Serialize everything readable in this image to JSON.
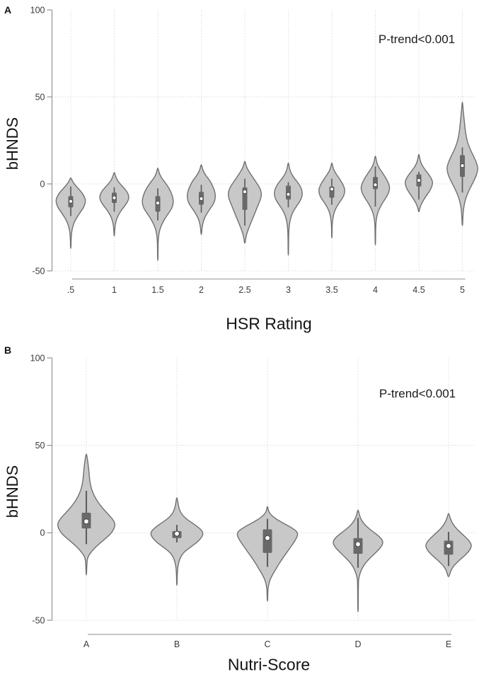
{
  "figure": {
    "background": "#ffffff",
    "panels": [
      {
        "letter": "A"
      },
      {
        "letter": "B"
      }
    ]
  },
  "colors": {
    "violin_fill": "#c8c8c8",
    "violin_stroke": "#707070",
    "box_fill": "#696969",
    "whisker": "#5f5f5f",
    "median_fill": "#ffffff",
    "median_stroke": "#4d4d4d",
    "axis_line": "#9a9a9a",
    "x_axis_line": "#b3b3b3",
    "gridline": "#d9d9d9",
    "tick_text": "#3a3a3a",
    "title_text": "#141414"
  },
  "chart_data": [
    {
      "type": "violin",
      "panel": "A",
      "xlabel": "HSR Rating",
      "ylabel": "bHNDS",
      "annotation": "P-trend<0.001",
      "grid": "dotted",
      "legend": "none",
      "yticks": [
        100,
        50,
        0,
        -50
      ],
      "ylim": [
        -50,
        100
      ],
      "categories": [
        ".5",
        "1",
        "1.5",
        "2",
        "2.5",
        "3",
        "3.5",
        "4",
        "4.5",
        "5"
      ],
      "series": [
        {
          "category": ".5",
          "median": -10,
          "q1": -13.5,
          "q3": -7,
          "whisker_low": -18.5,
          "whisker_high": -1.5,
          "density": [
            [
              3.5,
              0.5
            ],
            [
              1,
              3
            ],
            [
              -2,
              9
            ],
            [
              -5,
              16
            ],
            [
              -8,
              20
            ],
            [
              -10,
              21
            ],
            [
              -13,
              19
            ],
            [
              -16,
              14
            ],
            [
              -19,
              9
            ],
            [
              -22,
              5
            ],
            [
              -25,
              2.5
            ],
            [
              -28,
              1.2
            ],
            [
              -31,
              0.6
            ],
            [
              -37,
              0.3
            ]
          ]
        },
        {
          "category": "1",
          "median": -8,
          "q1": -11,
          "q3": -5,
          "whisker_low": -16,
          "whisker_high": -2,
          "density": [
            [
              6.5,
              0.5
            ],
            [
              4,
              2
            ],
            [
              1,
              6
            ],
            [
              -2,
              13
            ],
            [
              -5,
              19
            ],
            [
              -8,
              21
            ],
            [
              -11,
              18
            ],
            [
              -14,
              12
            ],
            [
              -17,
              7
            ],
            [
              -20,
              3.5
            ],
            [
              -23,
              1.5
            ],
            [
              -26,
              0.7
            ],
            [
              -30,
              0.3
            ]
          ]
        },
        {
          "category": "1.5",
          "median": -11,
          "q1": -16,
          "q3": -7,
          "whisker_low": -21,
          "whisker_high": -2.5,
          "density": [
            [
              9,
              0.5
            ],
            [
              6,
              2
            ],
            [
              3,
              6
            ],
            [
              0,
              12
            ],
            [
              -4,
              18
            ],
            [
              -8,
              21.5
            ],
            [
              -11,
              22
            ],
            [
              -14,
              20
            ],
            [
              -17,
              15
            ],
            [
              -20,
              10
            ],
            [
              -23,
              6
            ],
            [
              -26,
              3
            ],
            [
              -29,
              1.5
            ],
            [
              -32,
              0.7
            ],
            [
              -36,
              0.4
            ],
            [
              -44,
              0.25
            ]
          ]
        },
        {
          "category": "2",
          "median": -8.5,
          "q1": -12,
          "q3": -4.5,
          "whisker_low": -16.5,
          "whisker_high": -0.5,
          "density": [
            [
              11,
              0.5
            ],
            [
              8,
              2
            ],
            [
              5,
              6
            ],
            [
              2,
              12
            ],
            [
              -2,
              17
            ],
            [
              -5,
              19.5
            ],
            [
              -8,
              20
            ],
            [
              -11,
              18
            ],
            [
              -14,
              13
            ],
            [
              -17,
              8
            ],
            [
              -20,
              4
            ],
            [
              -23,
              2
            ],
            [
              -26,
              0.8
            ],
            [
              -29,
              0.4
            ]
          ]
        },
        {
          "category": "2.5",
          "median": -4.5,
          "q1": -15,
          "q3": -2,
          "whisker_low": -24,
          "whisker_high": 3,
          "density": [
            [
              13,
              0.4
            ],
            [
              10,
              2
            ],
            [
              7,
              6
            ],
            [
              4,
              11
            ],
            [
              1,
              16
            ],
            [
              -2,
              21
            ],
            [
              -5,
              23.5
            ],
            [
              -8,
              23
            ],
            [
              -11,
              20
            ],
            [
              -14,
              17
            ],
            [
              -17,
              14
            ],
            [
              -20,
              11
            ],
            [
              -23,
              8
            ],
            [
              -26,
              5
            ],
            [
              -29,
              2.5
            ],
            [
              -32,
              1
            ],
            [
              -34,
              0.5
            ]
          ]
        },
        {
          "category": "3",
          "median": -6,
          "q1": -9,
          "q3": -1,
          "whisker_low": -13.5,
          "whisker_high": 1,
          "density": [
            [
              12,
              0.4
            ],
            [
              9,
              1.5
            ],
            [
              6,
              4
            ],
            [
              3,
              9
            ],
            [
              0,
              15
            ],
            [
              -3,
              19
            ],
            [
              -6,
              20
            ],
            [
              -9,
              18
            ],
            [
              -12,
              13
            ],
            [
              -15,
              8
            ],
            [
              -18,
              4.5
            ],
            [
              -21,
              2.5
            ],
            [
              -24,
              1.3
            ],
            [
              -27,
              0.7
            ],
            [
              -31,
              0.4
            ],
            [
              -41,
              0.25
            ]
          ]
        },
        {
          "category": "3.5",
          "median": -3,
          "q1": -8,
          "q3": -1.5,
          "whisker_low": -12,
          "whisker_high": 3,
          "density": [
            [
              12,
              0.4
            ],
            [
              9.5,
              1.5
            ],
            [
              7,
              4
            ],
            [
              4,
              9
            ],
            [
              1,
              14
            ],
            [
              -2,
              17.5
            ],
            [
              -4,
              18.5
            ],
            [
              -7,
              17
            ],
            [
              -10,
              12
            ],
            [
              -13,
              7
            ],
            [
              -16,
              3.5
            ],
            [
              -19,
              1.8
            ],
            [
              -22,
              0.8
            ],
            [
              -25,
              0.4
            ],
            [
              -31,
              0.25
            ]
          ]
        },
        {
          "category": "4",
          "median": -0.5,
          "q1": -3,
          "q3": 4,
          "whisker_low": -13,
          "whisker_high": 10,
          "density": [
            [
              16,
              0.4
            ],
            [
              13,
              1.5
            ],
            [
              10,
              4
            ],
            [
              7,
              9
            ],
            [
              4,
              14
            ],
            [
              1,
              18
            ],
            [
              -2,
              20.5
            ],
            [
              -5,
              19
            ],
            [
              -8,
              15
            ],
            [
              -11,
              10
            ],
            [
              -14,
              6
            ],
            [
              -17,
              3
            ],
            [
              -20,
              1.5
            ],
            [
              -23,
              0.7
            ],
            [
              -27,
              0.4
            ],
            [
              -35,
              0.25
            ]
          ]
        },
        {
          "category": "4.5",
          "median": 2,
          "q1": -1.5,
          "q3": 5.5,
          "whisker_low": -9,
          "whisker_high": 7,
          "density": [
            [
              17,
              0.4
            ],
            [
              14,
              1.5
            ],
            [
              11,
              4
            ],
            [
              8,
              9
            ],
            [
              5,
              15
            ],
            [
              2,
              19
            ],
            [
              0,
              19.5
            ],
            [
              -3,
              17
            ],
            [
              -6,
              12
            ],
            [
              -9,
              7
            ],
            [
              -12,
              3
            ],
            [
              -14,
              1.2
            ],
            [
              -16,
              0.5
            ]
          ]
        },
        {
          "category": "5",
          "median": 10.5,
          "q1": 4,
          "q3": 16.5,
          "whisker_low": -5,
          "whisker_high": 21,
          "density": [
            [
              47,
              0.3
            ],
            [
              43,
              1
            ],
            [
              39,
              2
            ],
            [
              35,
              3
            ],
            [
              31,
              4
            ],
            [
              27,
              5.5
            ],
            [
              23,
              8
            ],
            [
              19,
              12
            ],
            [
              15,
              17
            ],
            [
              11,
              21
            ],
            [
              8,
              22
            ],
            [
              4,
              19
            ],
            [
              0,
              14
            ],
            [
              -4,
              9
            ],
            [
              -8,
              5
            ],
            [
              -12,
              2.5
            ],
            [
              -16,
              1.2
            ],
            [
              -20,
              0.6
            ],
            [
              -24,
              0.35
            ]
          ]
        }
      ]
    },
    {
      "type": "violin",
      "panel": "B",
      "xlabel": "Nutri-Score",
      "ylabel": "bHNDS",
      "annotation": "P-trend<0.001",
      "grid": "dotted",
      "legend": "none",
      "yticks": [
        100,
        50,
        0,
        -50
      ],
      "ylim": [
        -50,
        100
      ],
      "categories": [
        "A",
        "B",
        "C",
        "D",
        "E"
      ],
      "series": [
        {
          "category": "A",
          "median": 6.5,
          "q1": 2.5,
          "q3": 11.5,
          "whisker_low": -6.5,
          "whisker_high": 24,
          "density": [
            [
              45,
              0.5
            ],
            [
              41,
              2
            ],
            [
              36,
              3.5
            ],
            [
              31,
              4.5
            ],
            [
              27,
              6
            ],
            [
              23,
              9
            ],
            [
              19,
              14
            ],
            [
              15,
              21
            ],
            [
              11,
              30
            ],
            [
              7,
              39
            ],
            [
              4,
              41
            ],
            [
              0,
              36
            ],
            [
              -3,
              28
            ],
            [
              -6,
              19
            ],
            [
              -9,
              11
            ],
            [
              -12,
              5
            ],
            [
              -14,
              2
            ],
            [
              -17,
              0.8
            ],
            [
              -24,
              0.3
            ]
          ]
        },
        {
          "category": "B",
          "median": -0.5,
          "q1": -3,
          "q3": 1,
          "whisker_low": -5.5,
          "whisker_high": 4.5,
          "density": [
            [
              20,
              0.5
            ],
            [
              17,
              1.5
            ],
            [
              14,
              3
            ],
            [
              11,
              6
            ],
            [
              8,
              13
            ],
            [
              5,
              24
            ],
            [
              2,
              34
            ],
            [
              0,
              37
            ],
            [
              -2,
              36
            ],
            [
              -5,
              30
            ],
            [
              -8,
              20
            ],
            [
              -11,
              10
            ],
            [
              -14,
              5
            ],
            [
              -17,
              2.5
            ],
            [
              -20,
              1.2
            ],
            [
              -23,
              0.7
            ],
            [
              -26,
              0.4
            ],
            [
              -30,
              0.3
            ]
          ]
        },
        {
          "category": "C",
          "median": -3,
          "q1": -11.5,
          "q3": 2,
          "whisker_low": -19.5,
          "whisker_high": 8,
          "density": [
            [
              15,
              0.5
            ],
            [
              12,
              1.5
            ],
            [
              9,
              8
            ],
            [
              6,
              20
            ],
            [
              3,
              34
            ],
            [
              0,
              44
            ],
            [
              -4,
              40
            ],
            [
              -8,
              33
            ],
            [
              -12,
              26
            ],
            [
              -16,
              19
            ],
            [
              -20,
              13
            ],
            [
              -24,
              7
            ],
            [
              -27,
              3.5
            ],
            [
              -30,
              1.5
            ],
            [
              -33,
              0.6
            ],
            [
              -39,
              0.3
            ]
          ]
        },
        {
          "category": "D",
          "median": -6.5,
          "q1": -12,
          "q3": -3,
          "whisker_low": -20,
          "whisker_high": 8.5,
          "density": [
            [
              13,
              0.5
            ],
            [
              10,
              2
            ],
            [
              7,
              5
            ],
            [
              4,
              11
            ],
            [
              1,
              20
            ],
            [
              -2,
              30
            ],
            [
              -5,
              36
            ],
            [
              -8,
              33
            ],
            [
              -11,
              26
            ],
            [
              -14,
              18
            ],
            [
              -17,
              11
            ],
            [
              -20,
              6
            ],
            [
              -23,
              3
            ],
            [
              -26,
              1
            ],
            [
              -29,
              0.5
            ],
            [
              -45,
              0.25
            ]
          ]
        },
        {
          "category": "E",
          "median": -7.5,
          "q1": -12.5,
          "q3": -4.5,
          "whisker_low": -19,
          "whisker_high": 0.5,
          "density": [
            [
              11,
              0.5
            ],
            [
              8,
              2.5
            ],
            [
              5,
              6
            ],
            [
              2,
              12
            ],
            [
              -1,
              20
            ],
            [
              -4,
              28
            ],
            [
              -7,
              33
            ],
            [
              -10,
              30
            ],
            [
              -13,
              23
            ],
            [
              -15,
              17
            ],
            [
              -17,
              12
            ],
            [
              -19,
              7
            ],
            [
              -21,
              4
            ],
            [
              -23,
              2
            ],
            [
              -25,
              0.8
            ]
          ]
        }
      ]
    }
  ]
}
